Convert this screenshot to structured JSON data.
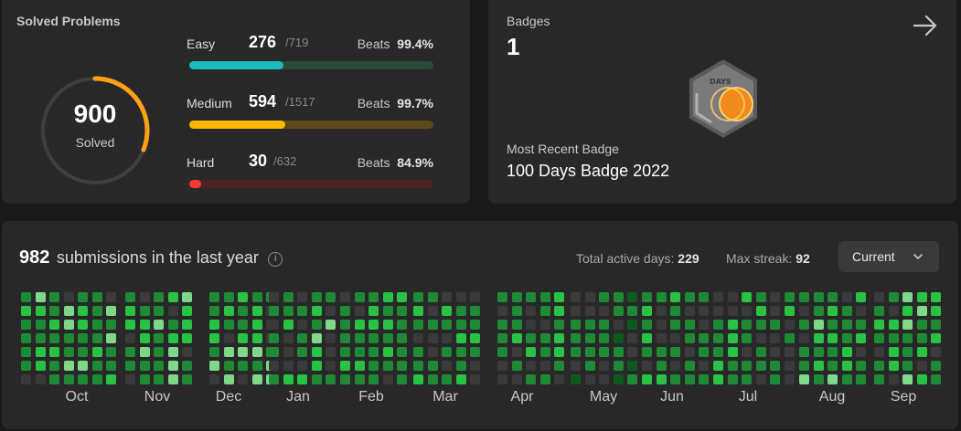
{
  "solved": {
    "title": "Solved Problems",
    "total": "900",
    "total_label": "Solved",
    "ring_fraction": 0.31,
    "rows": [
      {
        "name": "Easy",
        "count": "276",
        "total": "/719",
        "beats_label": "Beats",
        "beats": "99.4%",
        "fraction": 0.384,
        "fill": "#1cbaba",
        "track": "#2a4a3a"
      },
      {
        "name": "Medium",
        "count": "594",
        "total": "/1517",
        "beats_label": "Beats",
        "beats": "99.7%",
        "fraction": 0.392,
        "fill": "#ffb700",
        "track": "#5a4a1a"
      },
      {
        "name": "Hard",
        "count": "30",
        "total": "/632",
        "beats_label": "Beats",
        "beats": "84.9%",
        "fraction": 0.047,
        "fill": "#f63737",
        "track": "#4a2424"
      }
    ]
  },
  "badges": {
    "title": "Badges",
    "count": "1",
    "badge_text": "DAYS",
    "recent_label": "Most Recent Badge",
    "recent_name": "100 Days Badge 2022",
    "arrow_icon": "arrow-right-icon"
  },
  "submissions": {
    "count": "982",
    "text": "submissions in the last year",
    "active_label": "Total active days:",
    "active_value": "229",
    "streak_label": "Max streak:",
    "streak_value": "92",
    "selector": "Current",
    "months": [
      "Oct",
      "Nov",
      "Dec",
      "Jan",
      "Feb",
      "Mar",
      "Apr",
      "May",
      "Jun",
      "Jul",
      "Aug",
      "Sep"
    ]
  },
  "colors": {
    "empty": "#3a3a3a",
    "levels": [
      "#0e5a1e",
      "#1f8a35",
      "#28c244",
      "#7fd88a"
    ]
  }
}
